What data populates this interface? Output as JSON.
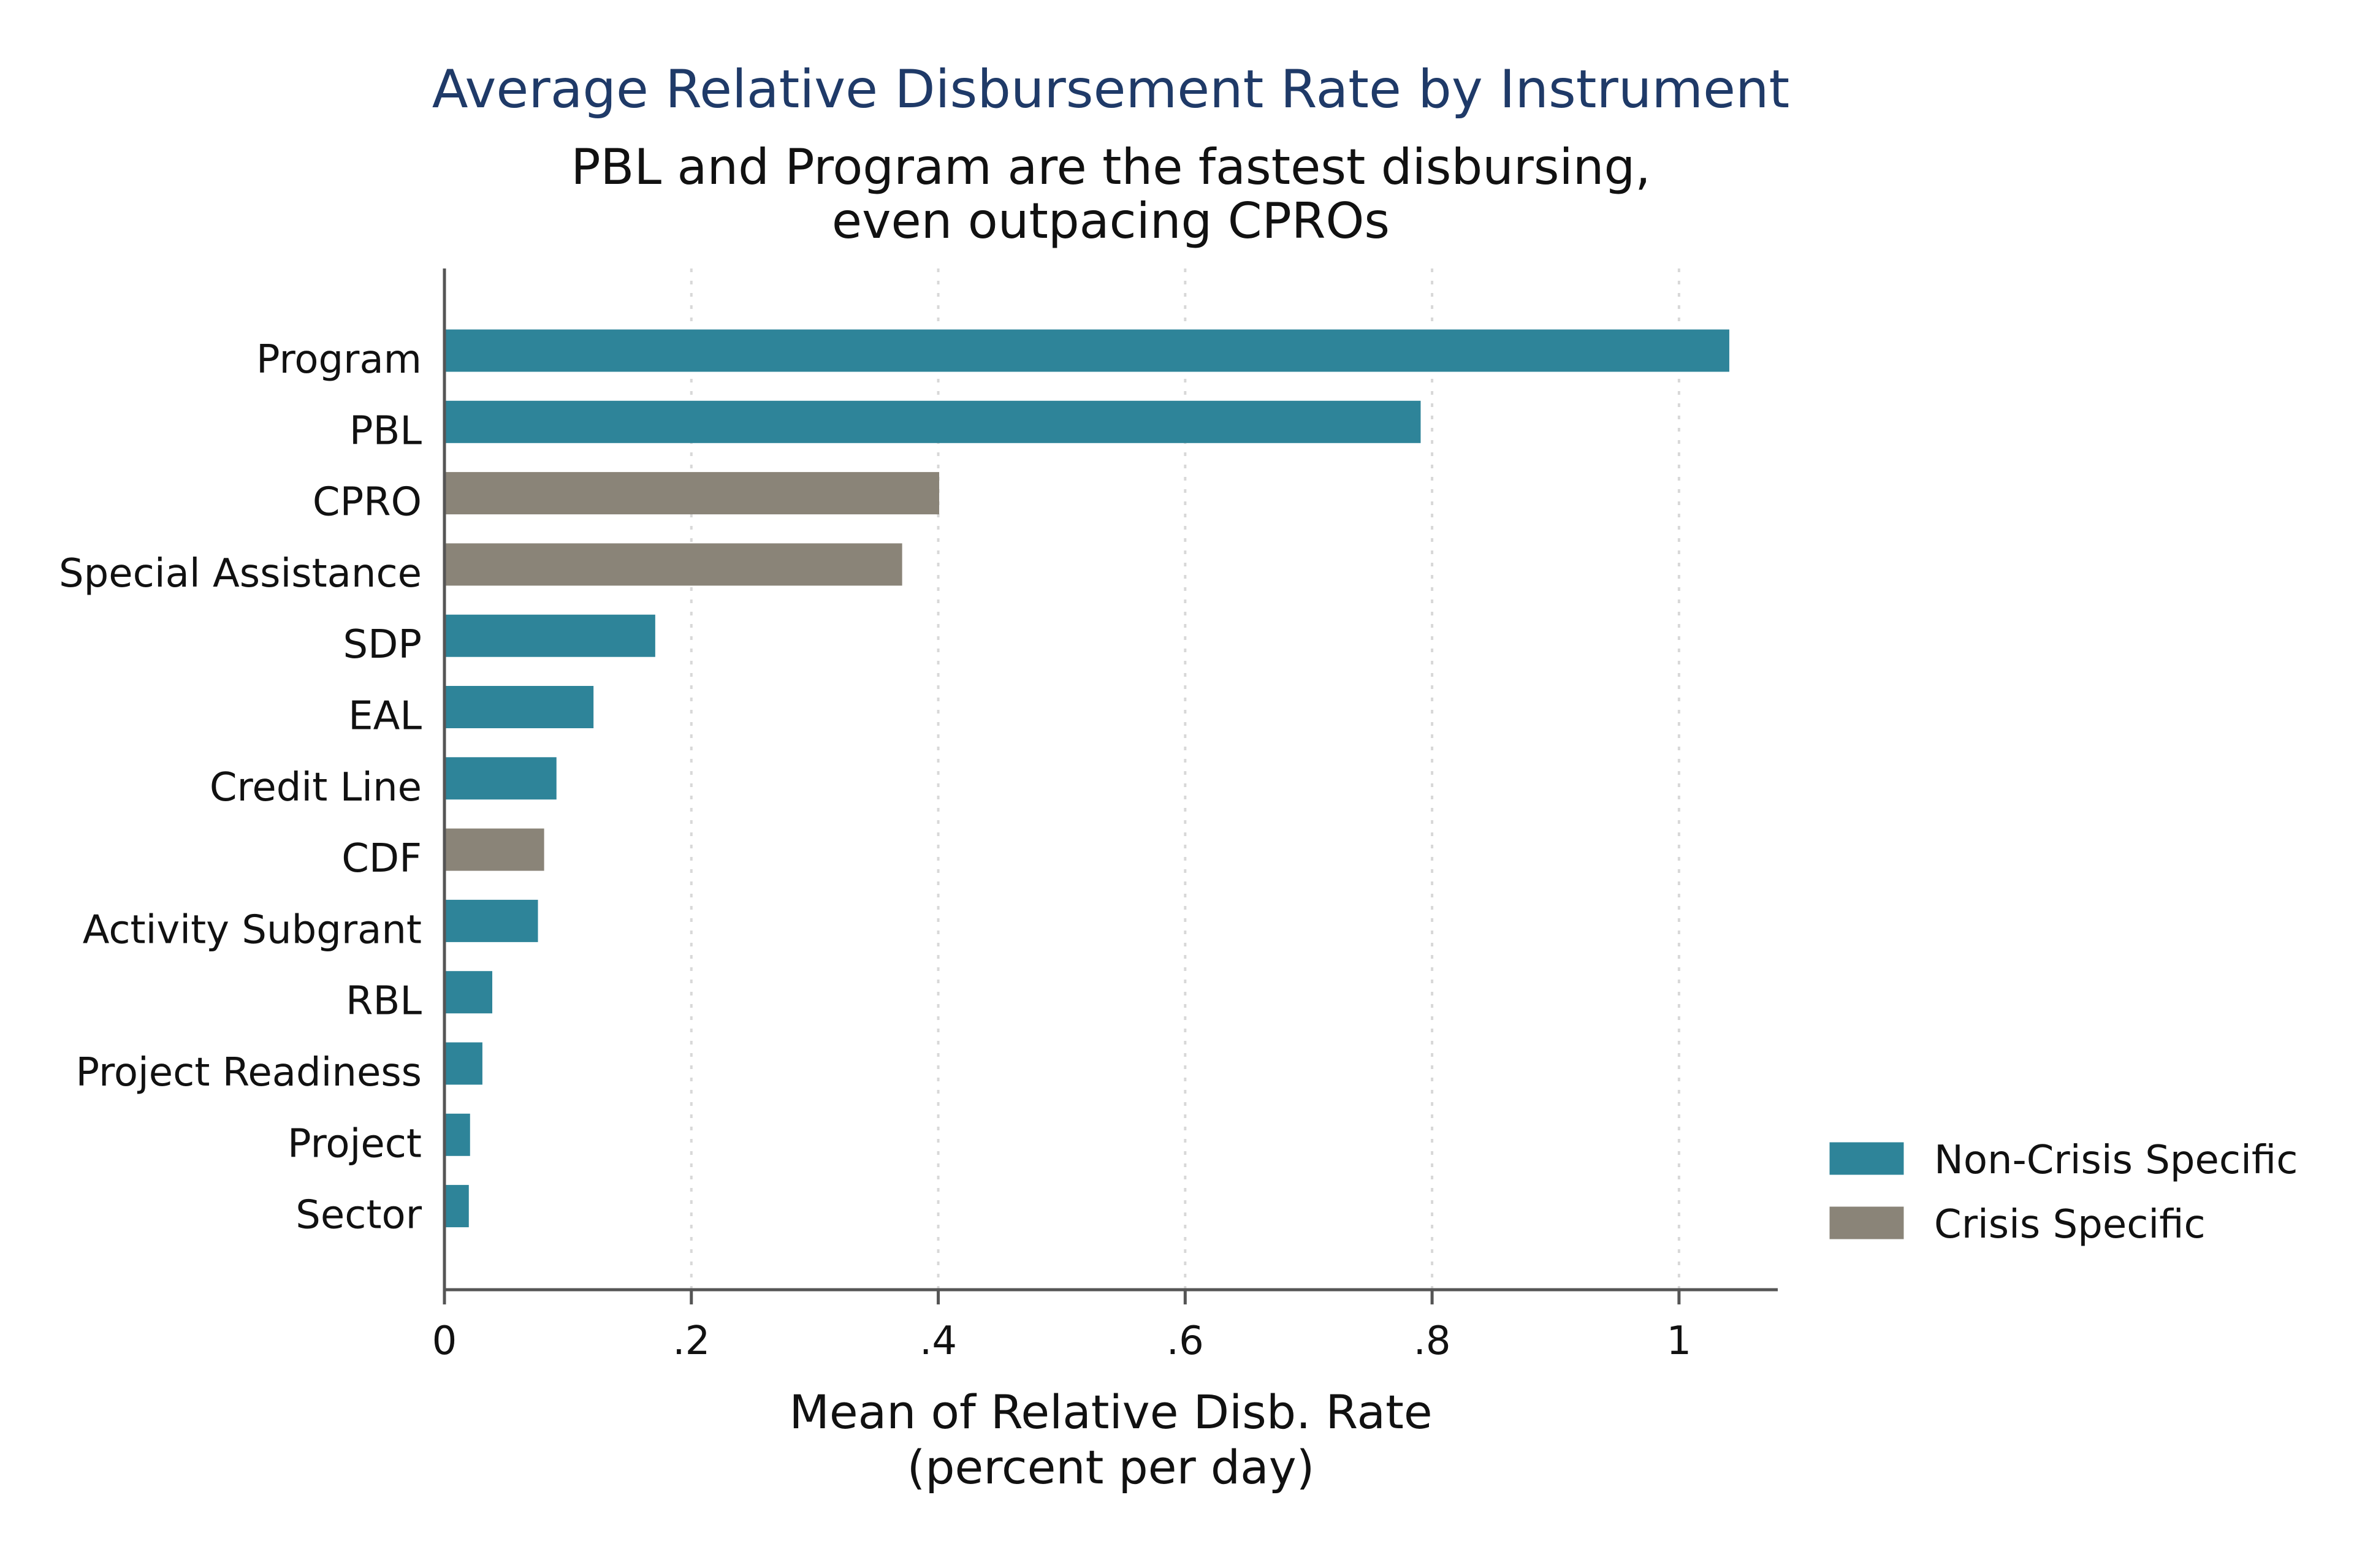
{
  "colors": {
    "non_crisis": "#2e8499",
    "crisis": "#8a8478",
    "title": "#1f3a68"
  },
  "chart_data": {
    "type": "bar",
    "orientation": "horizontal",
    "title": "Average Relative Disbursement Rate by Instrument",
    "subtitle_lines": [
      "PBL and Program are the fastest disbursing,",
      "even outpacing CPROs"
    ],
    "xlabel_lines": [
      "Mean of Relative Disb. Rate",
      "(percent per day)"
    ],
    "ylabel": "",
    "xlim": [
      0,
      1.08
    ],
    "x_ticks": [
      {
        "value": 0,
        "label": "0"
      },
      {
        "value": 0.2,
        "label": ".2"
      },
      {
        "value": 0.4,
        "label": ".4"
      },
      {
        "value": 0.6,
        "label": ".6"
      },
      {
        "value": 0.8,
        "label": ".8"
      },
      {
        "value": 1.0,
        "label": "1"
      }
    ],
    "grid": "vertical dotted",
    "legend_position": "right",
    "legend": [
      {
        "name": "Non-Crisis Specific",
        "group": "non_crisis"
      },
      {
        "name": "Crisis Specific",
        "group": "crisis"
      }
    ],
    "categories": [
      "Program",
      "PBL",
      "CPRO",
      "Special Assistance",
      "SDP",
      "EAL",
      "Credit Line",
      "CDF",
      "Activity Subgrant",
      "RBL",
      "Project Readiness",
      "Project",
      "Sector"
    ],
    "values": [
      1.04,
      0.79,
      0.4,
      0.37,
      0.17,
      0.12,
      0.09,
      0.08,
      0.075,
      0.038,
      0.03,
      0.02,
      0.019
    ],
    "groups": [
      "non_crisis",
      "non_crisis",
      "crisis",
      "crisis",
      "non_crisis",
      "non_crisis",
      "non_crisis",
      "crisis",
      "non_crisis",
      "non_crisis",
      "non_crisis",
      "non_crisis",
      "non_crisis"
    ]
  }
}
